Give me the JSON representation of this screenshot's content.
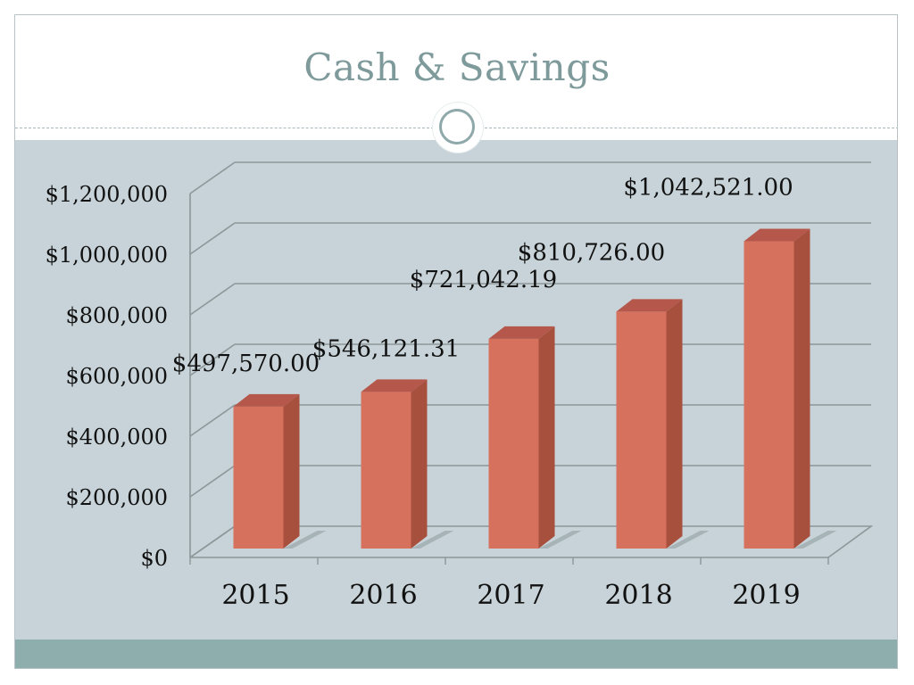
{
  "slide": {
    "title": "Cash & Savings"
  },
  "colors": {
    "plot_bg": "#c7d3d8",
    "bar_front": "#d6715e",
    "bar_side": "#a8503e",
    "bar_top": "#b5574a",
    "grid": "#8d9799",
    "footer": "#8eadad",
    "title": "#7f9a9b"
  },
  "chart_data": {
    "type": "bar",
    "categories": [
      "2015",
      "2016",
      "2017",
      "2018",
      "2019"
    ],
    "values": [
      497570.0,
      546121.31,
      721042.19,
      810726.0,
      1042521.0
    ],
    "data_labels": [
      "$497,570.00",
      "$546,121.31",
      "$721,042.19",
      "$810,726.00",
      "$1,042,521.00"
    ],
    "ytick_values": [
      0,
      200000,
      400000,
      600000,
      800000,
      1000000,
      1200000
    ],
    "ytick_labels": [
      "$0",
      "$200,000",
      "$400,000",
      "$600,000",
      "$800,000",
      "$1,000,000",
      "$1,200,000"
    ],
    "ylim": [
      0,
      1200000
    ],
    "grid": true,
    "legend": "none",
    "style": "3d-column"
  }
}
